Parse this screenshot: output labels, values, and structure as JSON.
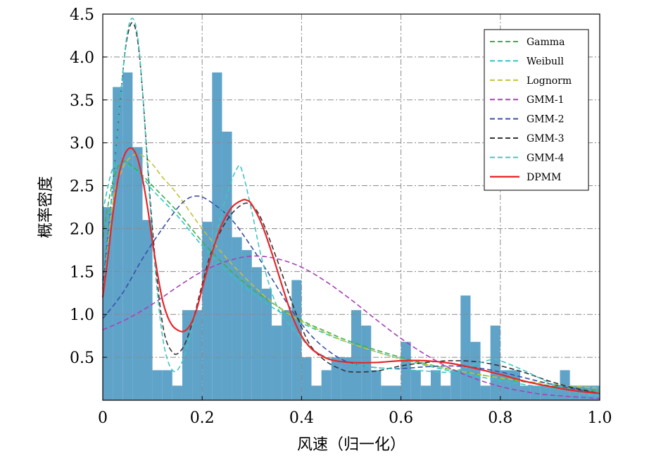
{
  "chart_data": {
    "type": "bar",
    "xlabel": "风速（归一化）",
    "ylabel": "概率密度",
    "xlim": [
      0,
      1.0
    ],
    "ylim": [
      0,
      4.5
    ],
    "grid": true,
    "grid_style": "dash-dot",
    "legend_position": "top-right",
    "x_ticks": [
      "0",
      "0.2",
      "0.4",
      "0.6",
      "0.8",
      "1.0"
    ],
    "y_ticks": [
      "0.5",
      "1.0",
      "1.5",
      "2.0",
      "2.5",
      "3.0",
      "3.5",
      "4.0",
      "4.5"
    ],
    "histogram": {
      "color": "#5fa3c9",
      "bin_width": 0.02,
      "bin_starts": [
        0,
        0.02,
        0.04,
        0.06,
        0.08,
        0.1,
        0.12,
        0.14,
        0.16,
        0.18,
        0.2,
        0.22,
        0.24,
        0.26,
        0.28,
        0.3,
        0.32,
        0.34,
        0.36,
        0.38,
        0.4,
        0.42,
        0.44,
        0.46,
        0.48,
        0.5,
        0.52,
        0.54,
        0.56,
        0.58,
        0.6,
        0.62,
        0.64,
        0.66,
        0.68,
        0.7,
        0.72,
        0.74,
        0.76,
        0.78,
        0.8,
        0.82,
        0.84,
        0.86,
        0.88,
        0.9,
        0.92,
        0.94,
        0.96,
        0.98
      ],
      "densities": [
        2.25,
        3.65,
        3.82,
        2.95,
        2.1,
        0.35,
        0.35,
        0.17,
        1.05,
        1.05,
        2.08,
        3.82,
        3.13,
        1.9,
        1.75,
        1.55,
        1.3,
        0.87,
        1.05,
        1.4,
        0.5,
        0.17,
        0.35,
        0.5,
        0.5,
        1.05,
        0.87,
        0.35,
        0.17,
        0.17,
        0.68,
        0.35,
        0.17,
        0.35,
        0.17,
        0.35,
        1.22,
        0.68,
        0.17,
        0.87,
        0.35,
        0.35,
        0.17,
        0.17,
        0.17,
        0.17,
        0.35,
        0.17,
        0.17,
        0.17
      ]
    },
    "series": [
      {
        "name": "Gamma",
        "color": "#3bb04a",
        "style": "dashed",
        "x": [
          0,
          0.02,
          0.04,
          0.06,
          0.08,
          0.1,
          0.15,
          0.2,
          0.25,
          0.3,
          0.35,
          0.4,
          0.45,
          0.5,
          0.6,
          0.7,
          0.8,
          0.9,
          1.0
        ],
        "y": [
          1.9,
          2.55,
          2.78,
          2.72,
          2.62,
          2.5,
          2.2,
          1.85,
          1.55,
          1.3,
          1.1,
          0.93,
          0.8,
          0.68,
          0.5,
          0.36,
          0.26,
          0.17,
          0.11
        ]
      },
      {
        "name": "Weibull",
        "color": "#2fc6c6",
        "style": "dashed",
        "x": [
          0,
          0.02,
          0.04,
          0.06,
          0.08,
          0.1,
          0.15,
          0.2,
          0.25,
          0.3,
          0.35,
          0.4,
          0.45,
          0.5,
          0.6,
          0.7,
          0.8,
          0.9,
          1.0
        ],
        "y": [
          2.2,
          2.7,
          2.75,
          2.7,
          2.6,
          2.45,
          2.15,
          1.8,
          1.5,
          1.25,
          1.05,
          0.9,
          0.77,
          0.66,
          0.48,
          0.34,
          0.23,
          0.14,
          0.09
        ]
      },
      {
        "name": "Lognorm",
        "color": "#c2c23a",
        "style": "dashed",
        "x": [
          0,
          0.02,
          0.04,
          0.06,
          0.08,
          0.1,
          0.12,
          0.15,
          0.2,
          0.25,
          0.3,
          0.35,
          0.4,
          0.45,
          0.5,
          0.6,
          0.7,
          0.8,
          0.9,
          1.0
        ],
        "y": [
          1.2,
          2.3,
          2.7,
          2.85,
          2.85,
          2.75,
          2.6,
          2.4,
          2.0,
          1.65,
          1.35,
          1.1,
          0.92,
          0.78,
          0.66,
          0.48,
          0.36,
          0.26,
          0.19,
          0.14
        ]
      },
      {
        "name": "GMM-1",
        "color": "#a93fb8",
        "style": "dashed",
        "x": [
          0,
          0.05,
          0.1,
          0.15,
          0.2,
          0.25,
          0.3,
          0.35,
          0.4,
          0.45,
          0.5,
          0.55,
          0.6,
          0.65,
          0.7,
          0.75,
          0.8,
          0.85,
          0.9,
          1.0
        ],
        "y": [
          0.82,
          0.95,
          1.12,
          1.32,
          1.5,
          1.62,
          1.68,
          1.65,
          1.55,
          1.38,
          1.17,
          0.94,
          0.72,
          0.53,
          0.37,
          0.25,
          0.16,
          0.1,
          0.06,
          0.02
        ]
      },
      {
        "name": "GMM-2",
        "color": "#3a4fa6",
        "style": "dashed",
        "x": [
          0,
          0.04,
          0.08,
          0.12,
          0.16,
          0.19,
          0.22,
          0.26,
          0.3,
          0.34,
          0.38,
          0.42,
          0.46,
          0.5,
          0.55,
          0.6,
          0.65,
          0.7,
          0.75,
          0.8,
          0.85,
          0.9,
          0.95,
          1.0
        ],
        "y": [
          0.95,
          1.25,
          1.65,
          2.0,
          2.3,
          2.38,
          2.3,
          2.1,
          1.78,
          1.42,
          1.05,
          0.75,
          0.55,
          0.43,
          0.38,
          0.37,
          0.39,
          0.4,
          0.38,
          0.33,
          0.26,
          0.19,
          0.13,
          0.08
        ]
      },
      {
        "name": "GMM-3",
        "color": "#333333",
        "style": "dashed",
        "x": [
          0,
          0.02,
          0.04,
          0.05,
          0.06,
          0.07,
          0.08,
          0.1,
          0.12,
          0.14,
          0.16,
          0.18,
          0.2,
          0.22,
          0.25,
          0.28,
          0.3,
          0.32,
          0.35,
          0.38,
          0.4,
          0.42,
          0.45,
          0.48,
          0.5,
          0.55,
          0.6,
          0.65,
          0.7,
          0.75,
          0.8,
          0.85,
          0.9,
          0.95,
          1.0
        ],
        "y": [
          1.3,
          2.5,
          3.8,
          4.25,
          4.4,
          4.2,
          3.6,
          2.0,
          0.9,
          0.56,
          0.6,
          0.9,
          1.35,
          1.75,
          2.1,
          2.28,
          2.27,
          2.1,
          1.65,
          1.15,
          0.85,
          0.62,
          0.45,
          0.36,
          0.33,
          0.34,
          0.4,
          0.44,
          0.46,
          0.45,
          0.4,
          0.32,
          0.22,
          0.14,
          0.08
        ]
      },
      {
        "name": "GMM-4",
        "color": "#41c5c0",
        "style": "dashed",
        "x": [
          0,
          0.02,
          0.04,
          0.05,
          0.06,
          0.07,
          0.08,
          0.1,
          0.12,
          0.14,
          0.16,
          0.18,
          0.2,
          0.22,
          0.25,
          0.27,
          0.28,
          0.3,
          0.32,
          0.35,
          0.38,
          0.4,
          0.42,
          0.45,
          0.48,
          0.5,
          0.55,
          0.6,
          0.65,
          0.7,
          0.75,
          0.78,
          0.8,
          0.85,
          0.9,
          0.95,
          1.0
        ],
        "y": [
          1.2,
          2.5,
          3.8,
          4.3,
          4.45,
          4.25,
          3.6,
          1.9,
          0.75,
          0.35,
          0.45,
          0.85,
          1.3,
          1.75,
          2.4,
          2.7,
          2.68,
          2.2,
          1.65,
          1.1,
          0.85,
          0.72,
          0.6,
          0.5,
          0.45,
          0.42,
          0.38,
          0.36,
          0.34,
          0.33,
          0.42,
          0.47,
          0.46,
          0.34,
          0.2,
          0.1,
          0.05
        ]
      },
      {
        "name": "DPMM",
        "color": "#e8262b",
        "style": "solid",
        "x": [
          0,
          0.01,
          0.02,
          0.03,
          0.04,
          0.05,
          0.06,
          0.07,
          0.08,
          0.09,
          0.1,
          0.11,
          0.12,
          0.13,
          0.14,
          0.15,
          0.16,
          0.17,
          0.18,
          0.19,
          0.2,
          0.22,
          0.24,
          0.26,
          0.28,
          0.29,
          0.3,
          0.32,
          0.34,
          0.36,
          0.38,
          0.4,
          0.42,
          0.44,
          0.46,
          0.5,
          0.55,
          0.6,
          0.65,
          0.7,
          0.75,
          0.8,
          0.85,
          0.9,
          0.95,
          1.0
        ],
        "y": [
          1.2,
          1.65,
          2.15,
          2.55,
          2.8,
          2.92,
          2.93,
          2.82,
          2.58,
          2.25,
          1.85,
          1.48,
          1.17,
          0.98,
          0.87,
          0.82,
          0.8,
          0.83,
          0.92,
          1.08,
          1.3,
          1.72,
          2.05,
          2.25,
          2.33,
          2.33,
          2.28,
          2.05,
          1.72,
          1.35,
          1.0,
          0.75,
          0.6,
          0.52,
          0.47,
          0.44,
          0.44,
          0.46,
          0.46,
          0.43,
          0.37,
          0.3,
          0.22,
          0.16,
          0.11,
          0.08
        ]
      }
    ]
  }
}
